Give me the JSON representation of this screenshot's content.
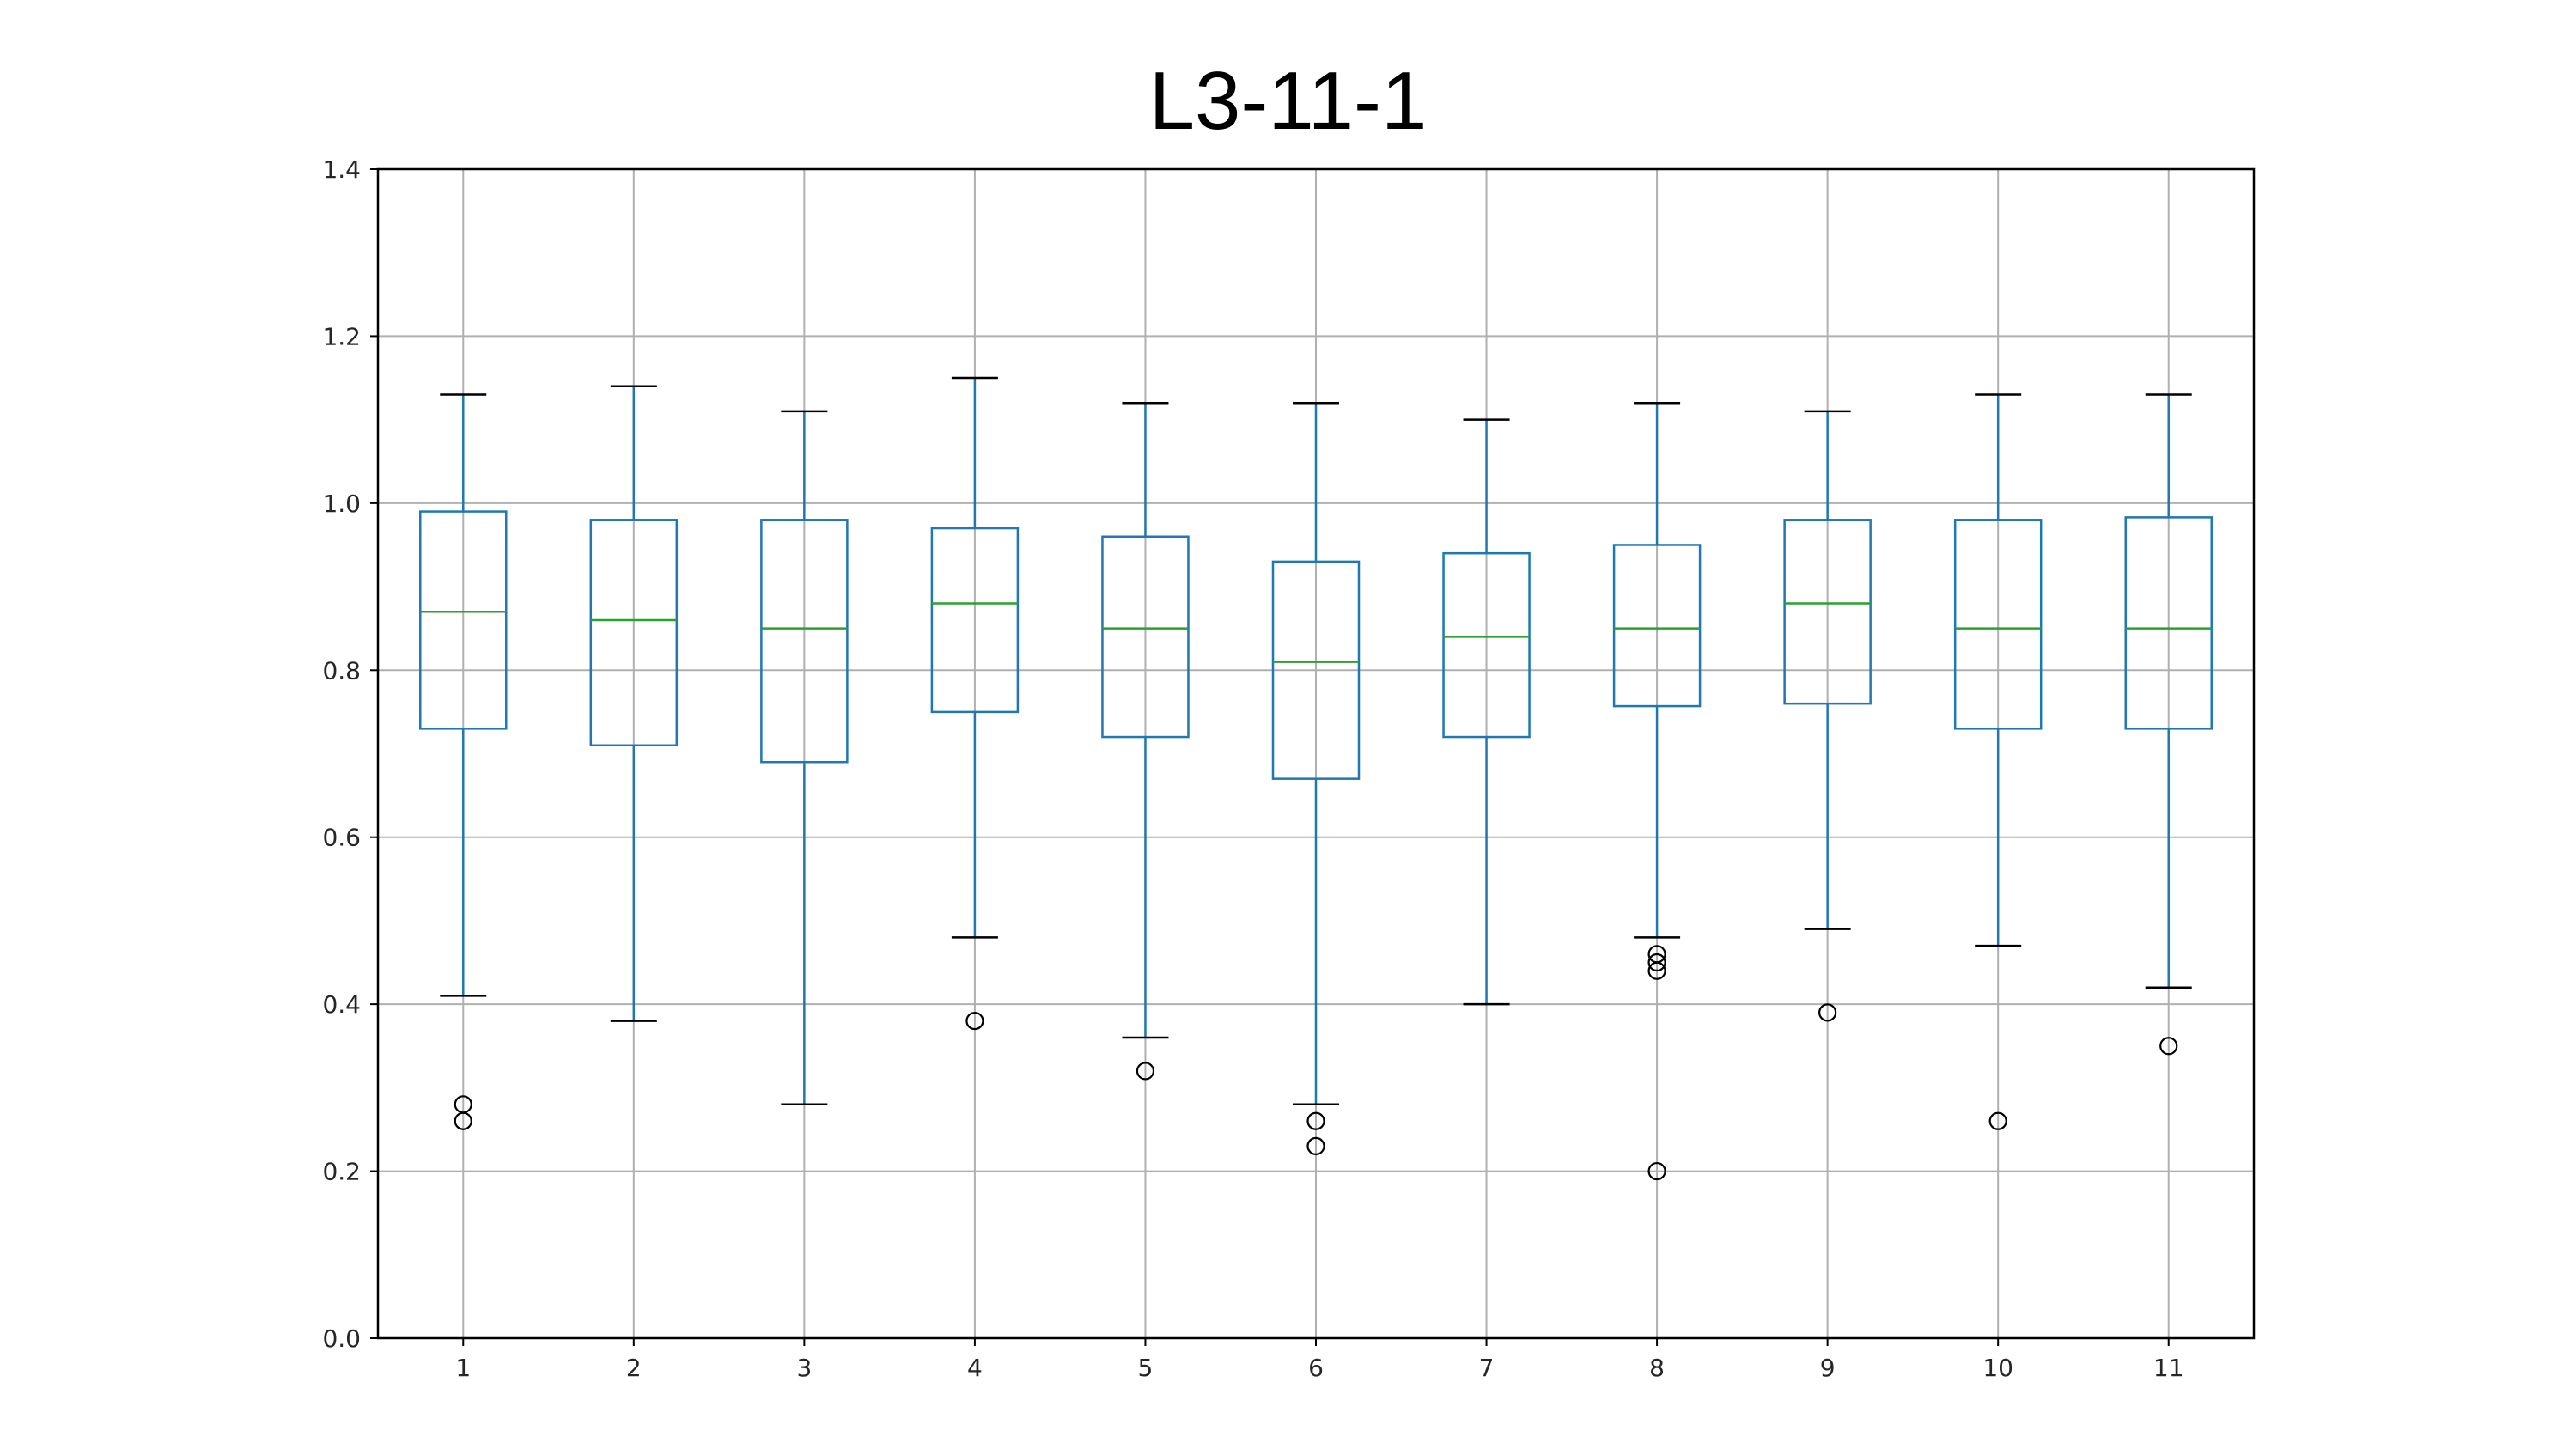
{
  "chart_data": {
    "type": "box",
    "title": "L3-11-1",
    "xlabel": "",
    "ylabel": "",
    "ylim": [
      0.0,
      1.4
    ],
    "yticks": [
      "0.0",
      "0.2",
      "0.4",
      "0.6",
      "0.8",
      "1.0",
      "1.2",
      "1.4"
    ],
    "categories": [
      "1",
      "2",
      "3",
      "4",
      "5",
      "6",
      "7",
      "8",
      "9",
      "10",
      "11"
    ],
    "grid": true,
    "colors": {
      "box": "#1f77b4",
      "median": "#2ca02c",
      "whisker_cap": "#000000",
      "outlier": "#000000",
      "grid": "#b0b0b0"
    },
    "boxes": [
      {
        "label": "1",
        "whislo": 0.41,
        "q1": 0.73,
        "med": 0.87,
        "q3": 0.99,
        "whishi": 1.13,
        "fliers": [
          0.28,
          0.26
        ]
      },
      {
        "label": "2",
        "whislo": 0.38,
        "q1": 0.71,
        "med": 0.86,
        "q3": 0.98,
        "whishi": 1.14,
        "fliers": []
      },
      {
        "label": "3",
        "whislo": 0.28,
        "q1": 0.69,
        "med": 0.85,
        "q3": 0.98,
        "whishi": 1.11,
        "fliers": []
      },
      {
        "label": "4",
        "whislo": 0.48,
        "q1": 0.75,
        "med": 0.88,
        "q3": 0.97,
        "whishi": 1.15,
        "fliers": [
          0.38
        ]
      },
      {
        "label": "5",
        "whislo": 0.36,
        "q1": 0.72,
        "med": 0.85,
        "q3": 0.96,
        "whishi": 1.12,
        "fliers": [
          0.32
        ]
      },
      {
        "label": "6",
        "whislo": 0.28,
        "q1": 0.67,
        "med": 0.81,
        "q3": 0.93,
        "whishi": 1.12,
        "fliers": [
          0.26,
          0.23
        ]
      },
      {
        "label": "7",
        "whislo": 0.4,
        "q1": 0.72,
        "med": 0.84,
        "q3": 0.94,
        "whishi": 1.1,
        "fliers": []
      },
      {
        "label": "8",
        "whislo": 0.48,
        "q1": 0.757,
        "med": 0.85,
        "q3": 0.95,
        "whishi": 1.12,
        "fliers": [
          0.46,
          0.45,
          0.44,
          0.2
        ]
      },
      {
        "label": "9",
        "whislo": 0.49,
        "q1": 0.76,
        "med": 0.88,
        "q3": 0.98,
        "whishi": 1.11,
        "fliers": [
          0.39
        ]
      },
      {
        "label": "10",
        "whislo": 0.47,
        "q1": 0.73,
        "med": 0.85,
        "q3": 0.98,
        "whishi": 1.13,
        "fliers": [
          0.26
        ]
      },
      {
        "label": "11",
        "whislo": 0.42,
        "q1": 0.73,
        "med": 0.85,
        "q3": 0.983,
        "whishi": 1.13,
        "fliers": [
          0.35
        ]
      }
    ]
  }
}
